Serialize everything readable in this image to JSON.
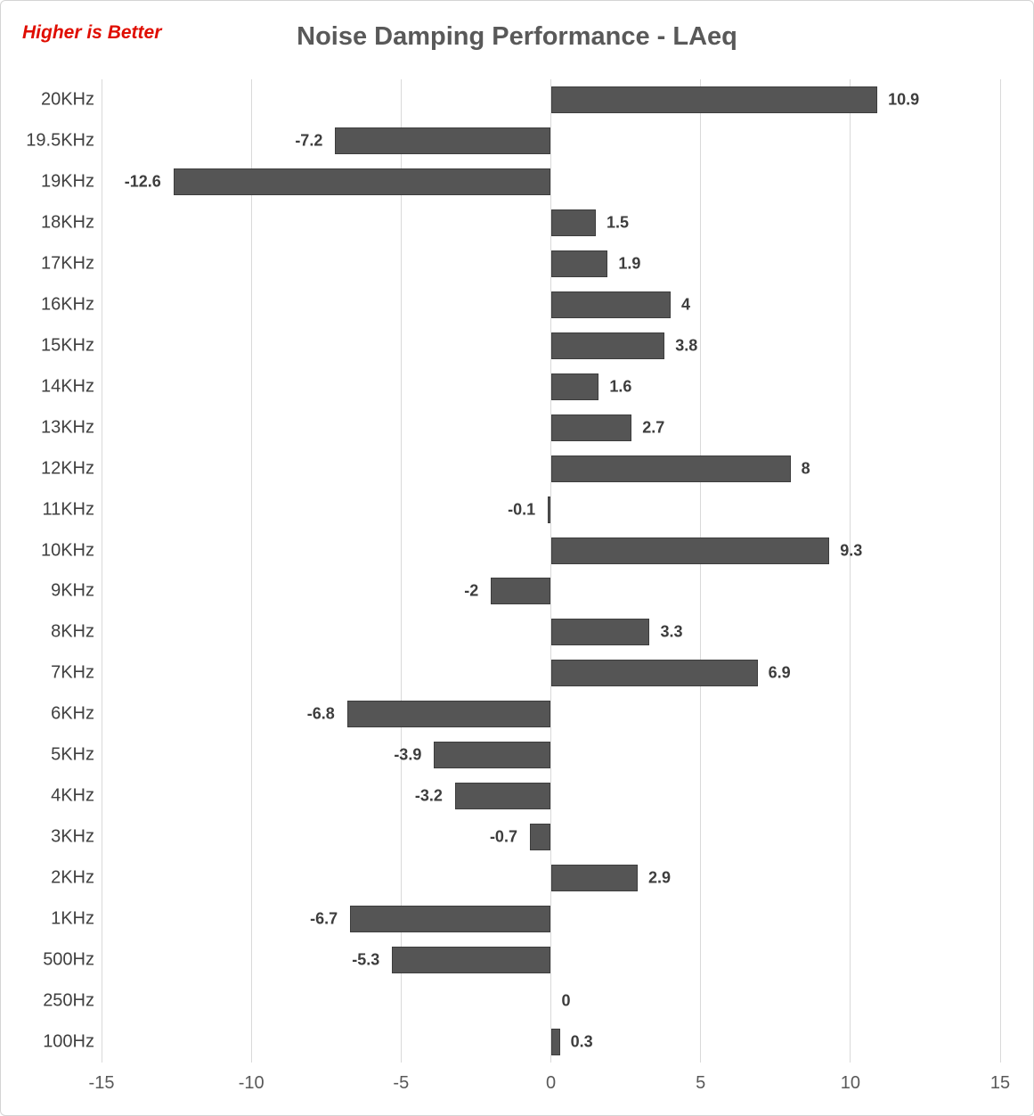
{
  "header": {
    "annotation": "Higher is Better",
    "annotation_color": "#e00d00",
    "title": "Noise Damping Performance - LAeq",
    "title_color": "#595959"
  },
  "chart_data": {
    "type": "bar",
    "orientation": "horizontal",
    "title": "Noise Damping Performance - LAeq",
    "categories": [
      "20KHz",
      "19.5KHz",
      "19KHz",
      "18KHz",
      "17KHz",
      "16KHz",
      "15KHz",
      "14KHz",
      "13KHz",
      "12KHz",
      "11KHz",
      "10KHz",
      "9KHz",
      "8KHz",
      "7KHz",
      "6KHz",
      "5KHz",
      "4KHz",
      "3KHz",
      "2KHz",
      "1KHz",
      "500Hz",
      "250Hz",
      "100Hz"
    ],
    "values": [
      10.9,
      -7.2,
      -12.6,
      1.5,
      1.9,
      4,
      3.8,
      1.6,
      2.7,
      8,
      -0.1,
      9.3,
      -2,
      3.3,
      6.9,
      -6.8,
      -3.9,
      -3.2,
      -0.7,
      2.9,
      -6.7,
      -5.3,
      0,
      0.3
    ],
    "xlabel": "",
    "ylabel": "",
    "xlim": [
      -15,
      15
    ],
    "xticks": [
      -15,
      -10,
      -5,
      0,
      5,
      10,
      15
    ],
    "grid": true,
    "legend": false,
    "colors": {
      "bar_fill": "#555555",
      "bar_border": "#3d3d3d",
      "gridline": "#d9d9d9",
      "value_label": "#3d3d3d",
      "category_label": "#404040",
      "axis_tick_label": "#595959"
    }
  }
}
